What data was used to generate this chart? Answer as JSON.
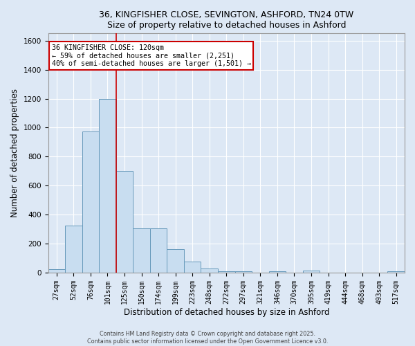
{
  "title_line1": "36, KINGFISHER CLOSE, SEVINGTON, ASHFORD, TN24 0TW",
  "title_line2": "Size of property relative to detached houses in Ashford",
  "xlabel": "Distribution of detached houses by size in Ashford",
  "ylabel": "Number of detached properties",
  "bar_color": "#c8ddf0",
  "bar_edge_color": "#6699bb",
  "bg_color": "#dde8f5",
  "fig_bg_color": "#dde8f5",
  "grid_color": "#ffffff",
  "categories": [
    "27sqm",
    "52sqm",
    "76sqm",
    "101sqm",
    "125sqm",
    "150sqm",
    "174sqm",
    "199sqm",
    "223sqm",
    "248sqm",
    "272sqm",
    "297sqm",
    "321sqm",
    "346sqm",
    "370sqm",
    "395sqm",
    "419sqm",
    "444sqm",
    "468sqm",
    "493sqm",
    "517sqm"
  ],
  "values": [
    25,
    325,
    975,
    1200,
    700,
    305,
    305,
    160,
    75,
    30,
    10,
    10,
    0,
    10,
    0,
    15,
    0,
    0,
    0,
    0,
    10
  ],
  "vline_color": "#cc0000",
  "vline_x": 3.5,
  "annotation_line1": "36 KINGFISHER CLOSE: 120sqm",
  "annotation_line2": "← 59% of detached houses are smaller (2,251)",
  "annotation_line3": "40% of semi-detached houses are larger (1,501) →",
  "annotation_box_edge": "#cc0000",
  "ylim": [
    0,
    1650
  ],
  "yticks": [
    0,
    200,
    400,
    600,
    800,
    1000,
    1200,
    1400,
    1600
  ],
  "footer_line1": "Contains HM Land Registry data © Crown copyright and database right 2025.",
  "footer_line2": "Contains public sector information licensed under the Open Government Licence v3.0."
}
